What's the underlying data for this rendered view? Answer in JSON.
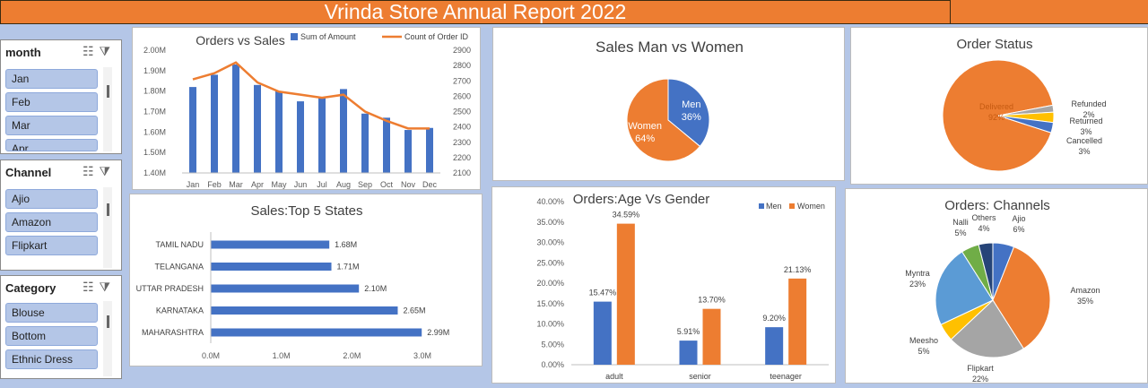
{
  "report_title": "Vrinda Store Annual Report 2022",
  "slicers": [
    {
      "header": "month",
      "items": [
        "Jan",
        "Feb",
        "Mar",
        "Apr"
      ]
    },
    {
      "header": "Channel",
      "items": [
        "Ajio",
        "Amazon",
        "Flipkart"
      ]
    },
    {
      "header": "Category",
      "items": [
        "Blouse",
        "Bottom",
        "Ethnic Dress"
      ]
    }
  ],
  "chart_data": [
    {
      "type": "bar",
      "title": "Orders vs Sales",
      "categories": [
        "Jan",
        "Feb",
        "Mar",
        "Apr",
        "May",
        "Jun",
        "Jul",
        "Aug",
        "Sep",
        "Oct",
        "Nov",
        "Dec"
      ],
      "series": [
        {
          "name": "Sum of Amount",
          "type": "bar",
          "color": "#4472c4",
          "values": [
            1.82,
            1.88,
            1.93,
            1.83,
            1.8,
            1.75,
            1.77,
            1.81,
            1.69,
            1.67,
            1.61,
            1.62
          ]
        },
        {
          "name": "Count of Order ID",
          "type": "line",
          "color": "#ed7d31",
          "values": [
            2710,
            2750,
            2820,
            2690,
            2630,
            2610,
            2590,
            2610,
            2500,
            2440,
            2390,
            2390
          ]
        }
      ],
      "y_ticks": [
        "1.40M",
        "1.50M",
        "1.60M",
        "1.70M",
        "1.80M",
        "1.90M",
        "2.00M"
      ],
      "ylim": [
        1.4,
        2.0
      ],
      "y2_ticks": [
        "2100",
        "2200",
        "2300",
        "2400",
        "2500",
        "2600",
        "2700",
        "2800",
        "2900"
      ],
      "y2lim": [
        2100,
        2900
      ]
    },
    {
      "type": "bar",
      "orientation": "horizontal",
      "title": "Sales:Top 5 States",
      "categories": [
        "TAMIL NADU",
        "TELANGANA",
        "UTTAR PRADESH",
        "KARNATAKA",
        "MAHARASHTRA"
      ],
      "values": [
        1.68,
        1.71,
        2.1,
        2.65,
        2.99
      ],
      "labels": [
        "1.68M",
        "1.71M",
        "2.10M",
        "2.65M",
        "2.99M"
      ],
      "x_ticks": [
        "0.0M",
        "1.0M",
        "2.0M",
        "3.0M"
      ],
      "xlim": [
        0,
        3.0
      ],
      "color": "#4472c4"
    },
    {
      "type": "pie",
      "title": "Sales Man vs Women",
      "slices": [
        {
          "name": "Men",
          "value": 36,
          "label": "36%",
          "color": "#4472c4"
        },
        {
          "name": "Women",
          "value": 64,
          "label": "64%",
          "color": "#ed7d31"
        }
      ]
    },
    {
      "type": "pie",
      "title": "Order Status",
      "slices": [
        {
          "name": "Delivered",
          "value": 92,
          "label": "92%",
          "color": "#ed7d31"
        },
        {
          "name": "Refunded",
          "value": 2,
          "label": "2%",
          "color": "#a5a5a5"
        },
        {
          "name": "Returned",
          "value": 3,
          "label": "3%",
          "color": "#ffc000"
        },
        {
          "name": "Cancelled",
          "value": 3,
          "label": "3%",
          "color": "#4472c4"
        }
      ]
    },
    {
      "type": "bar",
      "title": "Orders:Age Vs Gender",
      "categories": [
        "adult",
        "senior",
        "teenager"
      ],
      "series": [
        {
          "name": "Men",
          "color": "#4472c4",
          "values": [
            15.47,
            5.91,
            9.2
          ],
          "labels": [
            "15.47%",
            "5.91%",
            "9.20%"
          ]
        },
        {
          "name": "Women",
          "color": "#ed7d31",
          "values": [
            34.59,
            13.7,
            21.13
          ],
          "labels": [
            "34.59%",
            "13.70%",
            "21.13%"
          ]
        }
      ],
      "y_ticks": [
        "0.00%",
        "5.00%",
        "10.00%",
        "15.00%",
        "20.00%",
        "25.00%",
        "30.00%",
        "35.00%",
        "40.00%"
      ],
      "ylim": [
        0,
        40
      ]
    },
    {
      "type": "pie",
      "title": "Orders: Channels",
      "slices": [
        {
          "name": "Ajio",
          "value": 6,
          "label": "6%",
          "color": "#4472c4"
        },
        {
          "name": "Amazon",
          "value": 35,
          "label": "35%",
          "color": "#ed7d31"
        },
        {
          "name": "Flipkart",
          "value": 22,
          "label": "22%",
          "color": "#a5a5a5"
        },
        {
          "name": "Meesho",
          "value": 5,
          "label": "5%",
          "color": "#ffc000"
        },
        {
          "name": "Myntra",
          "value": 23,
          "label": "23%",
          "color": "#5b9bd5"
        },
        {
          "name": "Nalli",
          "value": 5,
          "label": "5%",
          "color": "#70ad47"
        },
        {
          "name": "Others",
          "value": 4,
          "label": "4%",
          "color": "#264478"
        }
      ]
    }
  ]
}
